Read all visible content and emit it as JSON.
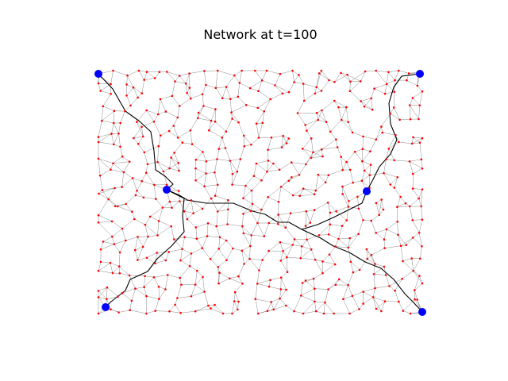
{
  "figure": {
    "title": "Network at t=100"
  },
  "colors": {
    "background": "#ffffff",
    "node": "#ff0000",
    "edge": "#555555",
    "path": "#000000",
    "terminal": "#0000ff"
  },
  "network": {
    "node_count": 560,
    "neighbors_per_node": 3,
    "terminal_count": 6
  }
}
